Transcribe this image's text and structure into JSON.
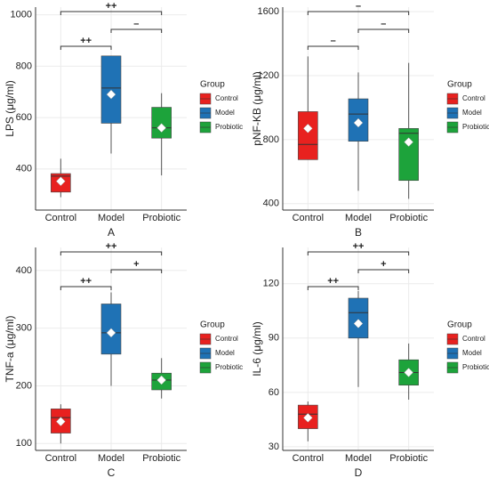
{
  "chart_data": [
    {
      "type": "box",
      "ylabel": "LPS  (μg/ml)",
      "xlabel": "A",
      "categories": [
        "Control",
        "Model",
        "Probiotic"
      ],
      "colors": [
        "#e8211f",
        "#1f72b5",
        "#1da33b"
      ],
      "legend_title": "Group",
      "ylim": [
        240,
        1030
      ],
      "yticks": [
        400,
        600,
        800,
        1000
      ],
      "grid": true,
      "boxes": [
        {
          "min": 290,
          "q1": 310,
          "median": 372,
          "q3": 382,
          "max": 440,
          "mean": 352
        },
        {
          "min": 460,
          "q1": 578,
          "median": 715,
          "q3": 840,
          "max": 840,
          "mean": 690
        },
        {
          "min": 375,
          "q1": 520,
          "median": 560,
          "q3": 640,
          "max": 695,
          "mean": 560
        }
      ],
      "annotations": [
        "++",
        "++",
        "–"
      ]
    },
    {
      "type": "box",
      "ylabel": "pNF-KB  (μg/ml)",
      "xlabel": "B",
      "categories": [
        "Control",
        "Model",
        "Probiotic"
      ],
      "colors": [
        "#e8211f",
        "#1f72b5",
        "#1da33b"
      ],
      "legend_title": "Group",
      "ylim": [
        360,
        1628
      ],
      "yticks": [
        400,
        800,
        1200,
        1600
      ],
      "grid": true,
      "boxes": [
        {
          "min": 675,
          "q1": 675,
          "median": 770,
          "q3": 975,
          "max": 1320,
          "mean": 870
        },
        {
          "min": 480,
          "q1": 790,
          "median": 960,
          "q3": 1055,
          "max": 1220,
          "mean": 905
        },
        {
          "min": 430,
          "q1": 545,
          "median": 840,
          "q3": 870,
          "max": 1280,
          "mean": 785
        }
      ],
      "annotations": [
        "–",
        "–",
        "–"
      ]
    },
    {
      "type": "box",
      "ylabel": "TNF-a  (μg/ml)",
      "xlabel": "C",
      "categories": [
        "Control",
        "Model",
        "Probiotic"
      ],
      "colors": [
        "#e8211f",
        "#1f72b5",
        "#1da33b"
      ],
      "legend_title": "Group",
      "ylim": [
        88,
        440
      ],
      "yticks": [
        100,
        200,
        300,
        400
      ],
      "grid": true,
      "boxes": [
        {
          "min": 100,
          "q1": 118,
          "median": 145,
          "q3": 160,
          "max": 168,
          "mean": 138
        },
        {
          "min": 200,
          "q1": 255,
          "median": 292,
          "q3": 342,
          "max": 362,
          "mean": 292
        },
        {
          "min": 178,
          "q1": 193,
          "median": 210,
          "q3": 222,
          "max": 248,
          "mean": 210
        }
      ],
      "annotations": [
        "++",
        "++",
        "+"
      ]
    },
    {
      "type": "box",
      "ylabel": "IL-6  (μg/ml)",
      "xlabel": "D",
      "categories": [
        "Control",
        "Model",
        "Probiotic"
      ],
      "colors": [
        "#e8211f",
        "#1f72b5",
        "#1da33b"
      ],
      "legend_title": "Group",
      "ylim": [
        28,
        140
      ],
      "yticks": [
        30,
        60,
        90,
        120
      ],
      "grid": true,
      "boxes": [
        {
          "min": 33,
          "q1": 40,
          "median": 48,
          "q3": 53,
          "max": 55,
          "mean": 46
        },
        {
          "min": 63,
          "q1": 90,
          "median": 104,
          "q3": 112,
          "max": 116,
          "mean": 98
        },
        {
          "min": 56,
          "q1": 64,
          "median": 71,
          "q3": 78,
          "max": 87,
          "mean": 71
        }
      ],
      "annotations": [
        "++",
        "++",
        "+"
      ]
    }
  ]
}
